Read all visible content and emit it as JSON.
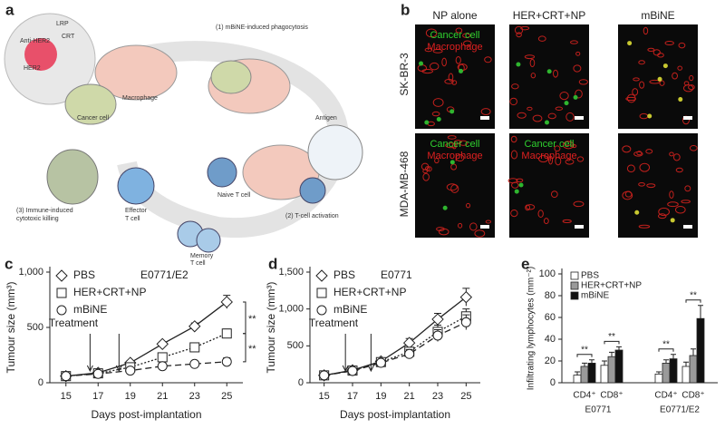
{
  "panel_a": {
    "label": "a",
    "texts": [
      "Anti-HER2",
      "CRT",
      "LRP",
      "HER2",
      "Cancer cell",
      "Macrophage",
      "(1) mBiNE-induced phagocytosis",
      "Antigen",
      "(2) T-cell activation",
      "Naive T cell",
      "Effector",
      "T cell",
      "Memory",
      "T cell",
      "(3) Immune-induced",
      "cytotoxic killing"
    ]
  },
  "panel_b": {
    "label": "b",
    "columns": [
      "NP alone",
      "HER+CRT+NP",
      "mBiNE"
    ],
    "rows": [
      "SK-BR-3",
      "MDA-MB-468"
    ],
    "legend": [
      "Cancer cell",
      "Macrophage"
    ]
  },
  "chart_data": [
    {
      "type": "line",
      "label": "c",
      "annotation": "E0771/E2",
      "treatment": "Treatment",
      "significance": [
        "**",
        "**"
      ],
      "x_label": "Days post-implantation",
      "y_label": "Tumour size (mm³)",
      "x": [
        15,
        17,
        19,
        21,
        23,
        25
      ],
      "xlim": [
        14,
        26
      ],
      "xticks": [
        15,
        17,
        19,
        21,
        23,
        25
      ],
      "ylim": [
        0,
        1000
      ],
      "yticks": [
        0,
        500,
        {
          "value": 1000,
          "label": "1,000"
        }
      ],
      "series": [
        {
          "name": "PBS",
          "color": "#222222",
          "marker": "diamond",
          "dash": "solid",
          "values": [
            60,
            90,
            180,
            350,
            510,
            730
          ],
          "errors": [
            10,
            10,
            20,
            20,
            30,
            60
          ]
        },
        {
          "name": "HER+CRT+NP",
          "color": "#222222",
          "marker": "square",
          "dash": "dotted",
          "values": [
            60,
            85,
            140,
            230,
            320,
            445
          ],
          "errors": [
            10,
            10,
            15,
            30,
            30,
            40
          ]
        },
        {
          "name": "mBiNE",
          "color": "#222222",
          "marker": "circle",
          "dash": "dashed",
          "values": [
            60,
            80,
            110,
            150,
            170,
            190
          ],
          "errors": [
            10,
            10,
            15,
            20,
            25,
            35
          ]
        }
      ]
    },
    {
      "type": "line",
      "label": "d",
      "annotation": "E0771",
      "treatment": "Treatment",
      "x_label": "Days post-implantation",
      "y_label": "Tumour size (mm³)",
      "x": [
        15,
        17,
        19,
        21,
        23,
        25
      ],
      "xlim": [
        14,
        26
      ],
      "xticks": [
        15,
        17,
        19,
        21,
        23,
        25
      ],
      "ylim": [
        0,
        1500
      ],
      "yticks": [
        0,
        500,
        {
          "value": 1000,
          "label": "1,000"
        },
        {
          "value": 1500,
          "label": "1,500"
        }
      ],
      "series": [
        {
          "name": "PBS",
          "color": "#222222",
          "marker": "diamond",
          "dash": "solid",
          "values": [
            100,
            170,
            290,
            540,
            860,
            1160
          ],
          "errors": [
            20,
            30,
            40,
            60,
            80,
            120
          ]
        },
        {
          "name": "HER+CRT+NP",
          "color": "#222222",
          "marker": "square",
          "dash": "dotted",
          "values": [
            100,
            165,
            280,
            420,
            690,
            900
          ],
          "errors": [
            20,
            30,
            40,
            60,
            90,
            100
          ]
        },
        {
          "name": "mBiNE",
          "color": "#222222",
          "marker": "circle",
          "dash": "dashed",
          "values": [
            100,
            160,
            270,
            390,
            640,
            820
          ],
          "errors": [
            20,
            30,
            40,
            60,
            80,
            100
          ]
        }
      ]
    },
    {
      "type": "bar",
      "label": "e",
      "y_label": "Infiltrating lymphocytes (mm⁻²)",
      "significance": [
        "**",
        "**",
        "**",
        "**"
      ],
      "categories": [
        "CD4⁺",
        "CD8⁺",
        "CD4⁺",
        "CD8⁺"
      ],
      "groups": [
        "E0771",
        "E0771/E2"
      ],
      "ylim": [
        0,
        100
      ],
      "yticks": [
        0,
        20,
        40,
        60,
        80,
        100
      ],
      "series": [
        {
          "name": "PBS",
          "color": "#ffffff",
          "values": [
            7,
            16,
            8,
            15
          ],
          "errors": [
            3,
            4,
            2,
            4
          ]
        },
        {
          "name": "HER+CRT+NP",
          "color": "#9a9a9a",
          "values": [
            15,
            24,
            18,
            25
          ],
          "errors": [
            3,
            4,
            3,
            6
          ]
        },
        {
          "name": "mBiNE",
          "color": "#111111",
          "values": [
            18,
            30,
            22,
            59
          ],
          "errors": [
            3,
            3,
            4,
            12
          ]
        }
      ]
    }
  ]
}
